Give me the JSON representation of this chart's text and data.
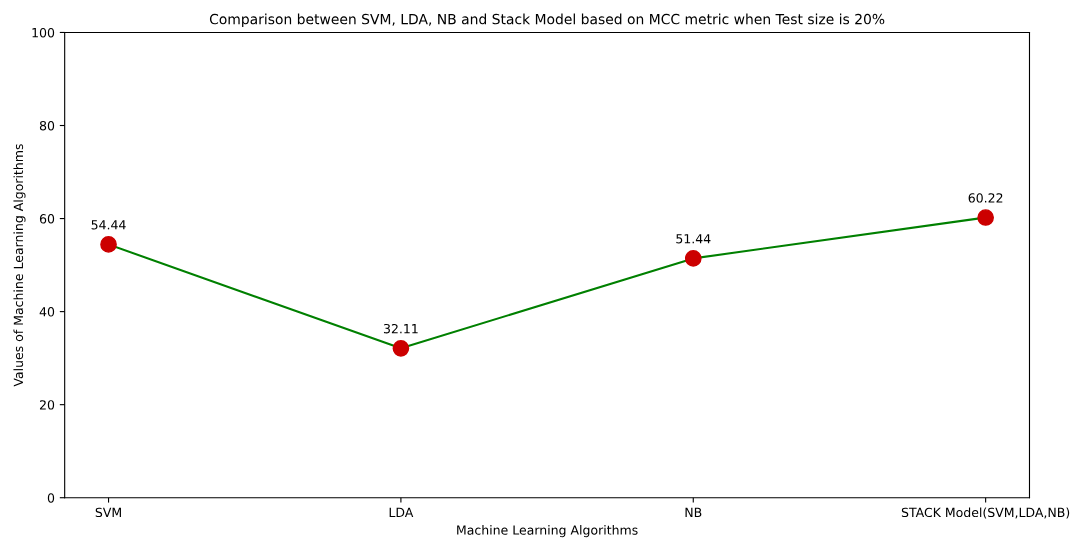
{
  "chart_data": {
    "type": "line",
    "title": "Comparison between SVM, LDA, NB and Stack Model based on MCC metric when Test size is 20%",
    "xlabel": "Machine Learning Algorithms",
    "ylabel": "Values of Machine Learning Algorithms",
    "categories": [
      "SVM",
      "LDA",
      "NB",
      "STACK Model(SVM,LDA,NB)"
    ],
    "series": [
      {
        "color": "#008000",
        "values": [
          54.44,
          32.11,
          51.44,
          60.22
        ]
      }
    ],
    "marker": "circle",
    "line_style": "solid",
    "data_labels": true,
    "ylim": [
      0,
      100
    ],
    "yticks": [
      0,
      20,
      40,
      60,
      80,
      100
    ],
    "grid": false,
    "legend": false
  }
}
